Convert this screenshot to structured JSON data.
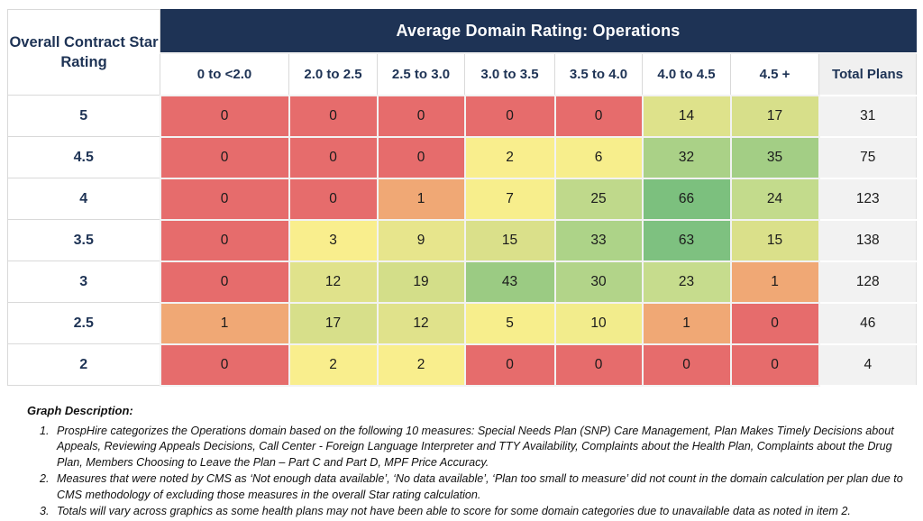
{
  "table": {
    "title": "Average Domain Rating: Operations",
    "row_axis_title": "Overall Contract Star Rating",
    "columns": [
      "0 to <2.0",
      "2.0 to 2.5",
      "2.5 to 3.0",
      "3.0 to 3.5",
      "3.5 to 4.0",
      "4.0 to 4.5",
      "4.5 +"
    ],
    "total_column": "Total Plans",
    "rows": [
      {
        "label": "5",
        "values": [
          0,
          0,
          0,
          0,
          0,
          14,
          17
        ],
        "colors": [
          "#E66C6C",
          "#E66C6C",
          "#E66C6C",
          "#E66C6C",
          "#E66C6C",
          "#DEE28B",
          "#D7DF8A"
        ],
        "total": 31
      },
      {
        "label": "4.5",
        "values": [
          0,
          0,
          0,
          2,
          6,
          32,
          35
        ],
        "colors": [
          "#E66C6C",
          "#E66C6C",
          "#E66C6C",
          "#F9EE8D",
          "#F7EE8C",
          "#AAD187",
          "#A3CE85"
        ],
        "total": 75
      },
      {
        "label": "4",
        "values": [
          0,
          0,
          1,
          7,
          25,
          66,
          24
        ],
        "colors": [
          "#E66C6C",
          "#E66C6C",
          "#F0A875",
          "#F7EE8C",
          "#BFD98B",
          "#7CC07E",
          "#C3DB8C"
        ],
        "total": 123
      },
      {
        "label": "3.5",
        "values": [
          0,
          3,
          9,
          15,
          33,
          63,
          15
        ],
        "colors": [
          "#E66C6C",
          "#F9EE8D",
          "#E7E58C",
          "#DAE08A",
          "#ADD388",
          "#7EC180",
          "#DAE08A"
        ],
        "total": 138
      },
      {
        "label": "3",
        "values": [
          0,
          12,
          19,
          43,
          30,
          23,
          1
        ],
        "colors": [
          "#E66C6C",
          "#E0E28B",
          "#D3DE89",
          "#9BCB83",
          "#B2D489",
          "#C6DC8D",
          "#F0A875"
        ],
        "total": 128
      },
      {
        "label": "2.5",
        "values": [
          1,
          17,
          12,
          5,
          10,
          1,
          0
        ],
        "colors": [
          "#F0A875",
          "#D7DF8A",
          "#E0E28B",
          "#F7EE8C",
          "#F2EC8C",
          "#F0A875",
          "#E66C6C"
        ],
        "total": 46
      },
      {
        "label": "2",
        "values": [
          0,
          2,
          2,
          0,
          0,
          0,
          0
        ],
        "colors": [
          "#E66C6C",
          "#F9EE8D",
          "#F9EE8D",
          "#E66C6C",
          "#E66C6C",
          "#E66C6C",
          "#E66C6C"
        ],
        "total": 4
      }
    ]
  },
  "colors": {
    "banner_bg": "#1E3355",
    "banner_text": "#FFFFFF",
    "label_text": "#1E3355",
    "total_bg": "#F2F2F2",
    "scale_low": "#E66C6C",
    "scale_mid": "#F9EE8D",
    "scale_high": "#7CC07E"
  },
  "notes": {
    "heading": "Graph Description:",
    "items": [
      "ProspHire categorizes the Operations domain based on the following 10 measures: Special Needs Plan (SNP) Care Management, Plan Makes Timely Decisions about Appeals, Reviewing Appeals Decisions, Call Center - Foreign Language Interpreter and TTY Availability, Complaints about the Health Plan, Complaints about the Drug Plan, Members Choosing to Leave the Plan – Part C and Part D, MPF Price Accuracy.",
      "Measures that were noted by CMS as ‘Not enough data available’, ‘No data available’, ‘Plan too small to measure’ did not count in the domain calculation per plan due to CMS methodology of excluding those measures in the overall Star rating calculation.",
      "Totals will vary across graphics as some health plans may not have been able to score for some domain categories due to unavailable data as noted in item 2."
    ]
  },
  "chart_data": {
    "type": "heatmap",
    "title": "Average Domain Rating: Operations",
    "row_axis_label": "Overall Contract Star Rating",
    "row_labels": [
      "5",
      "4.5",
      "4",
      "3.5",
      "3",
      "2.5",
      "2"
    ],
    "col_labels": [
      "0 to <2.0",
      "2.0 to 2.5",
      "2.5 to 3.0",
      "3.0 to 3.5",
      "3.5 to 4.0",
      "4.0 to 4.5",
      "4.5 +"
    ],
    "values": [
      [
        0,
        0,
        0,
        0,
        0,
        14,
        17
      ],
      [
        0,
        0,
        0,
        2,
        6,
        32,
        35
      ],
      [
        0,
        0,
        1,
        7,
        25,
        66,
        24
      ],
      [
        0,
        3,
        9,
        15,
        33,
        63,
        15
      ],
      [
        0,
        12,
        19,
        43,
        30,
        23,
        1
      ],
      [
        1,
        17,
        12,
        5,
        10,
        1,
        0
      ],
      [
        0,
        2,
        2,
        0,
        0,
        0,
        0
      ]
    ],
    "row_totals": [
      31,
      75,
      123,
      138,
      128,
      46,
      4
    ],
    "totals_label": "Total Plans",
    "colorscale": "red (low count) -> yellow -> green (high count)",
    "legend": "none",
    "grid": true
  }
}
